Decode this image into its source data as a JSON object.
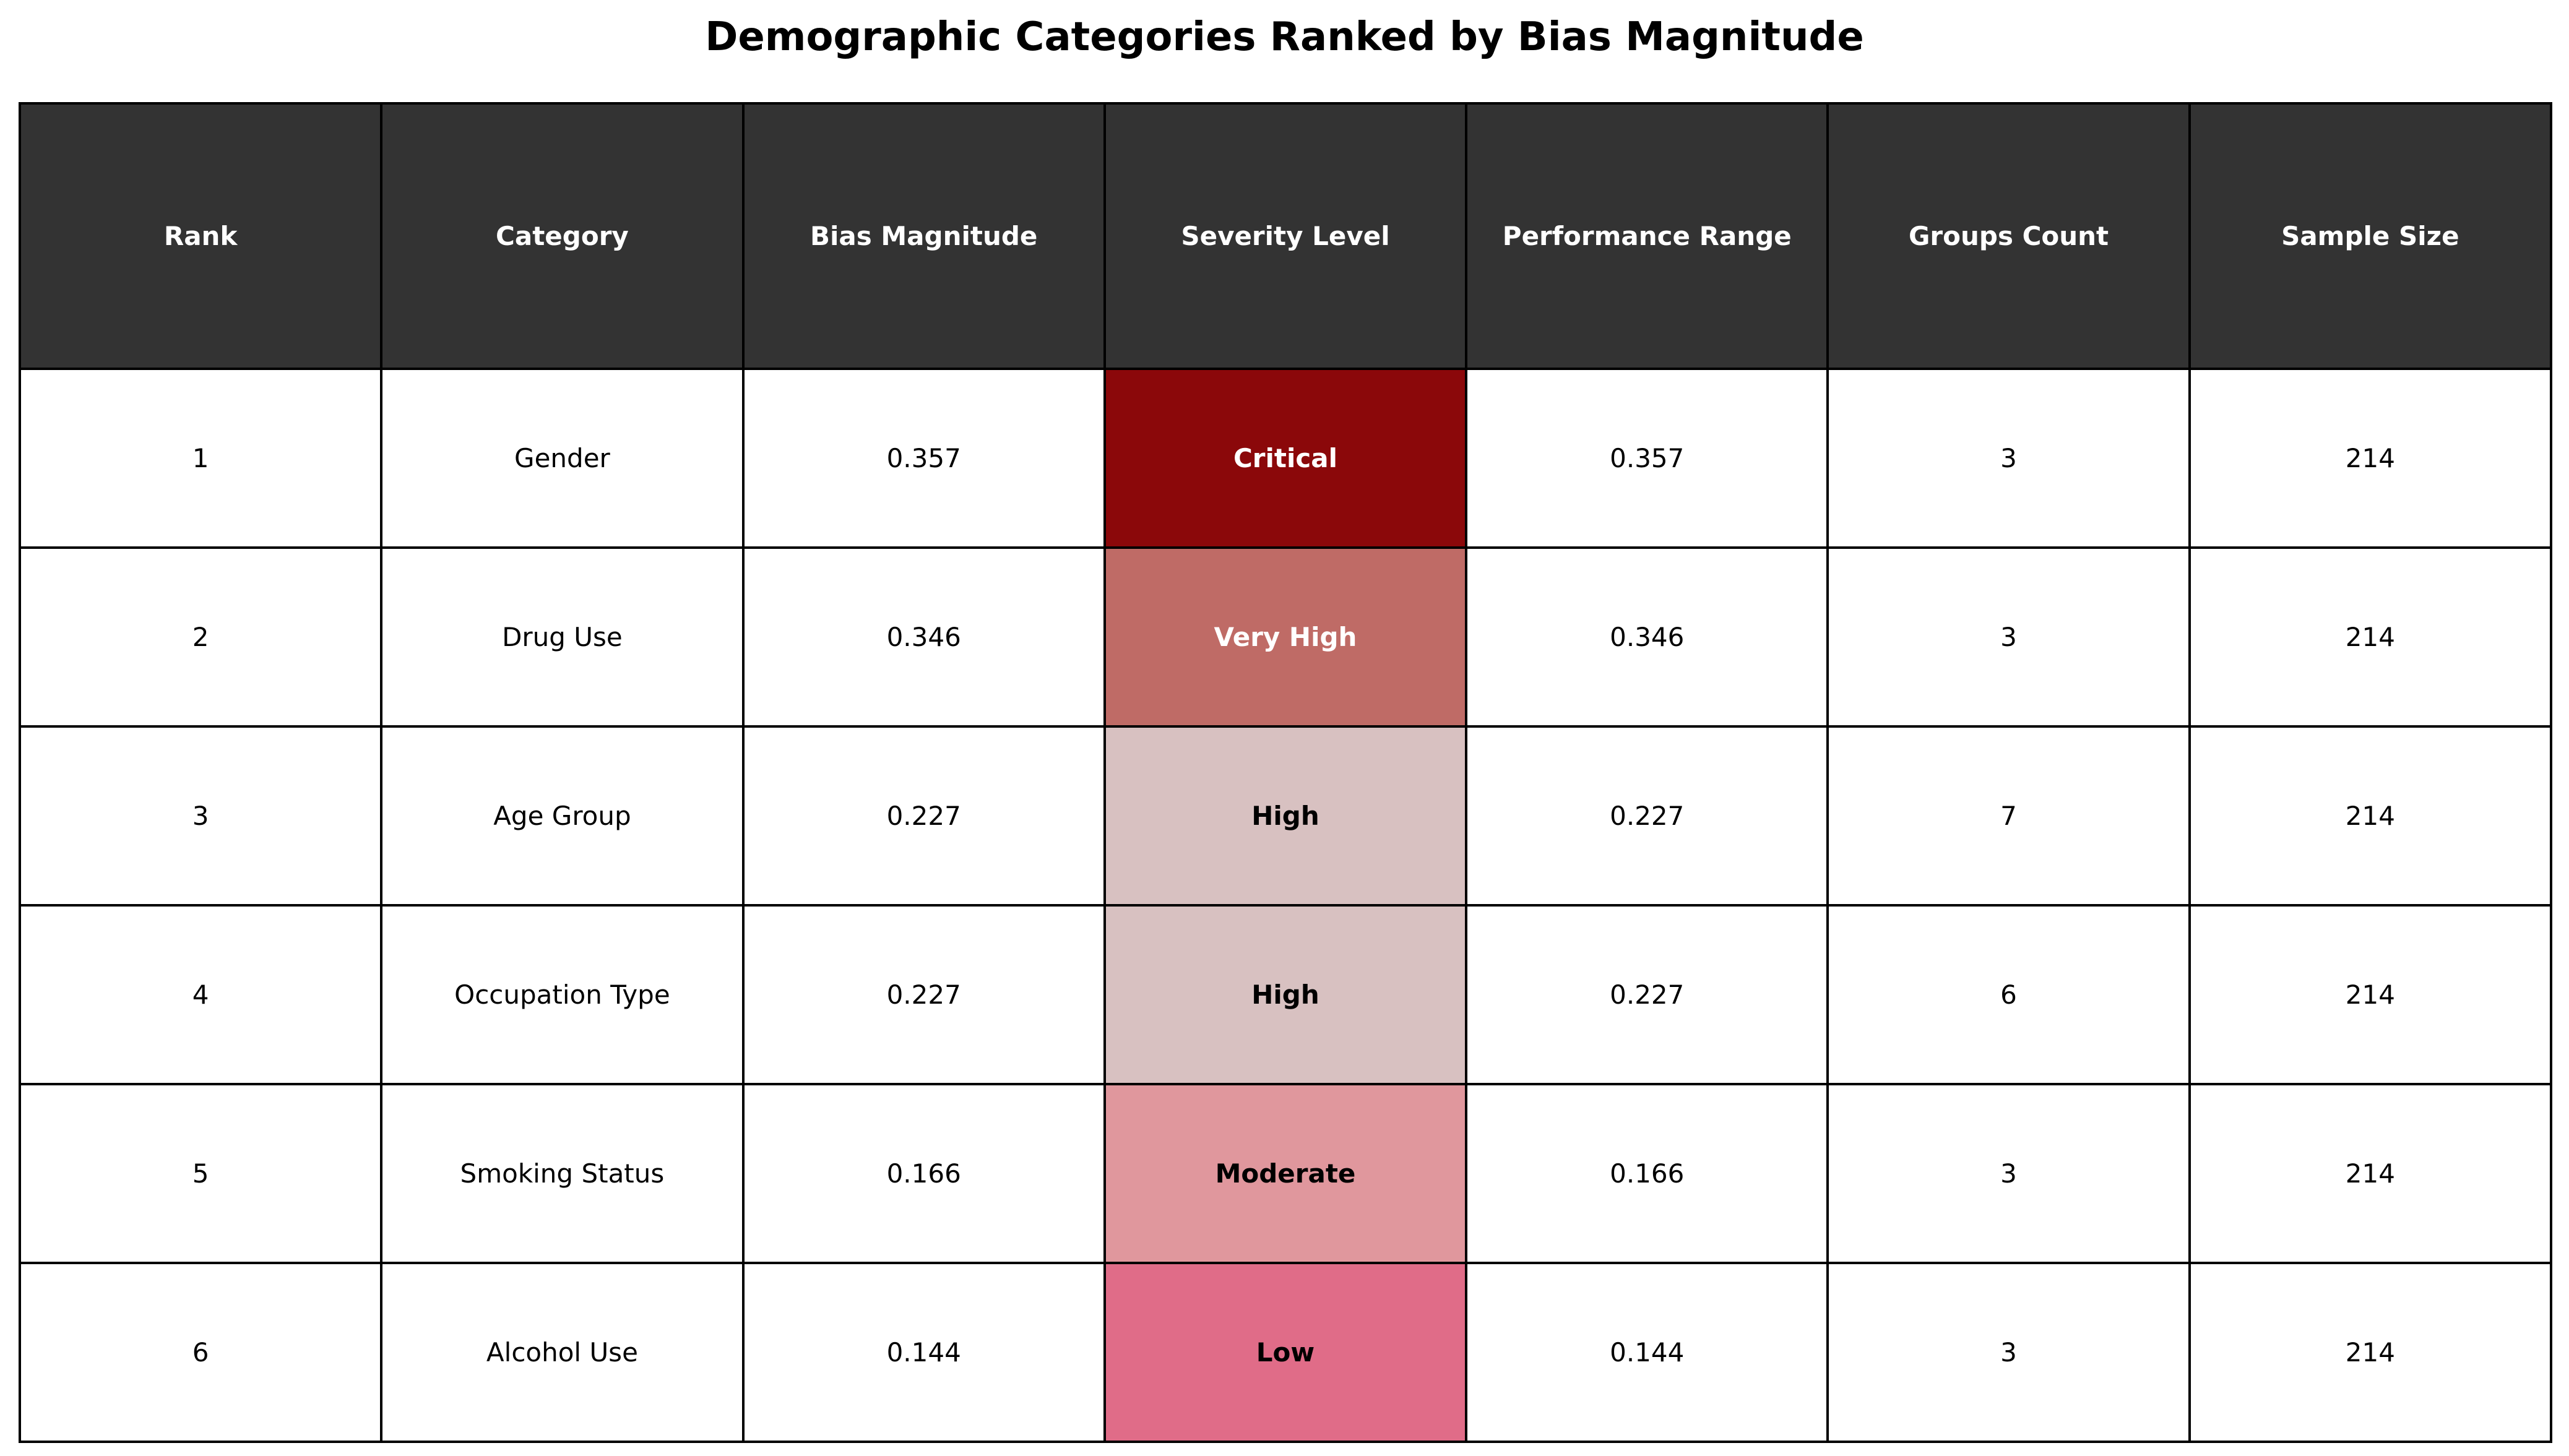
{
  "chart_data": {
    "type": "table",
    "title": "Demographic Categories Ranked by Bias Magnitude",
    "header_color": "#333333",
    "columns": [
      "Rank",
      "Category",
      "Bias Magnitude",
      "Severity Level",
      "Performance Range",
      "Groups Count",
      "Sample Size"
    ],
    "rows": [
      [
        "1",
        "Gender",
        "0.357",
        "Critical",
        "0.357",
        "3",
        "214"
      ],
      [
        "2",
        "Drug Use",
        "0.346",
        "Very High",
        "0.346",
        "3",
        "214"
      ],
      [
        "3",
        "Age Group",
        "0.227",
        "High",
        "0.227",
        "7",
        "214"
      ],
      [
        "4",
        "Occupation Type",
        "0.227",
        "High",
        "0.227",
        "6",
        "214"
      ],
      [
        "5",
        "Smoking Status",
        "0.166",
        "Moderate",
        "0.166",
        "3",
        "214"
      ],
      [
        "6",
        "Alcohol Use",
        "0.144",
        "Low",
        "0.144",
        "3",
        "214"
      ]
    ],
    "severity_colors": {
      "Critical": "#8b080a",
      "Very High": "#bf6b66",
      "High": "#d8c1c1",
      "Moderate": "#e0979d",
      "Low": "#e06c88"
    },
    "severity_text_colors": {
      "Critical": "#ffffff",
      "Very High": "#ffffff",
      "High": "#000000",
      "Moderate": "#000000",
      "Low": "#000000"
    }
  }
}
